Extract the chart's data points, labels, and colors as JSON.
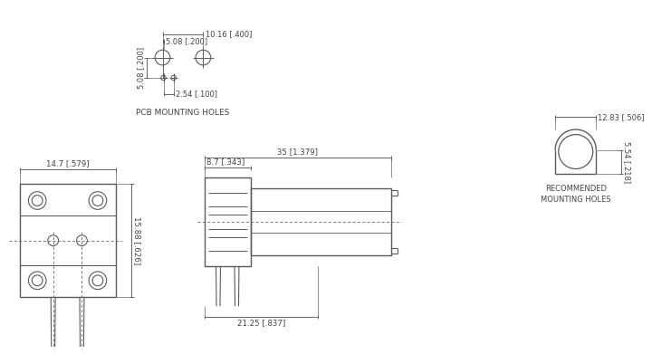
{
  "bg_color": "#ffffff",
  "line_color": "#5a5a5a",
  "text_color": "#444444",
  "pcb": {
    "caption": "PCB MOUNTING HOLES",
    "dim_5_08_v": "5.08 [.200]",
    "dim_10_16": "10.16 [.400]",
    "dim_5_08_h": "5.08 [.200]",
    "dim_2_54": "2.54 [.100]"
  },
  "front": {
    "dim_w": "14.7 [.579]",
    "dim_h": "15.88 [.626]"
  },
  "side": {
    "dim_total": "35 [1.379]",
    "dim_body": "8.7 [.343]",
    "dim_pin": "21.25 [.837]"
  },
  "mount": {
    "dim_w": "12.83 [.506]",
    "dim_h": "5.54 [.218]",
    "caption": "RECOMMENDED\nMOUNTING HOLES"
  }
}
